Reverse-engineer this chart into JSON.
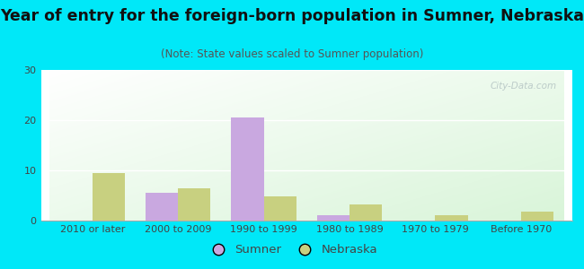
{
  "title": "Year of entry for the foreign-born population in Sumner, Nebraska",
  "subtitle": "(Note: State values scaled to Sumner population)",
  "categories": [
    "2010 or later",
    "2000 to 2009",
    "1990 to 1999",
    "1980 to 1989",
    "1970 to 1979",
    "Before 1970"
  ],
  "sumner_values": [
    0,
    5.5,
    20.5,
    1,
    0,
    0
  ],
  "nebraska_values": [
    9.5,
    6.5,
    4.8,
    3.2,
    1.1,
    1.7
  ],
  "sumner_color": "#c9a8e0",
  "nebraska_color": "#c8d080",
  "ylim": [
    0,
    30
  ],
  "yticks": [
    0,
    10,
    20,
    30
  ],
  "background_outer": "#00e8f8",
  "bar_width": 0.38,
  "title_fontsize": 12.5,
  "subtitle_fontsize": 8.5,
  "tick_fontsize": 8,
  "legend_fontsize": 9.5,
  "watermark": "City-Data.com"
}
